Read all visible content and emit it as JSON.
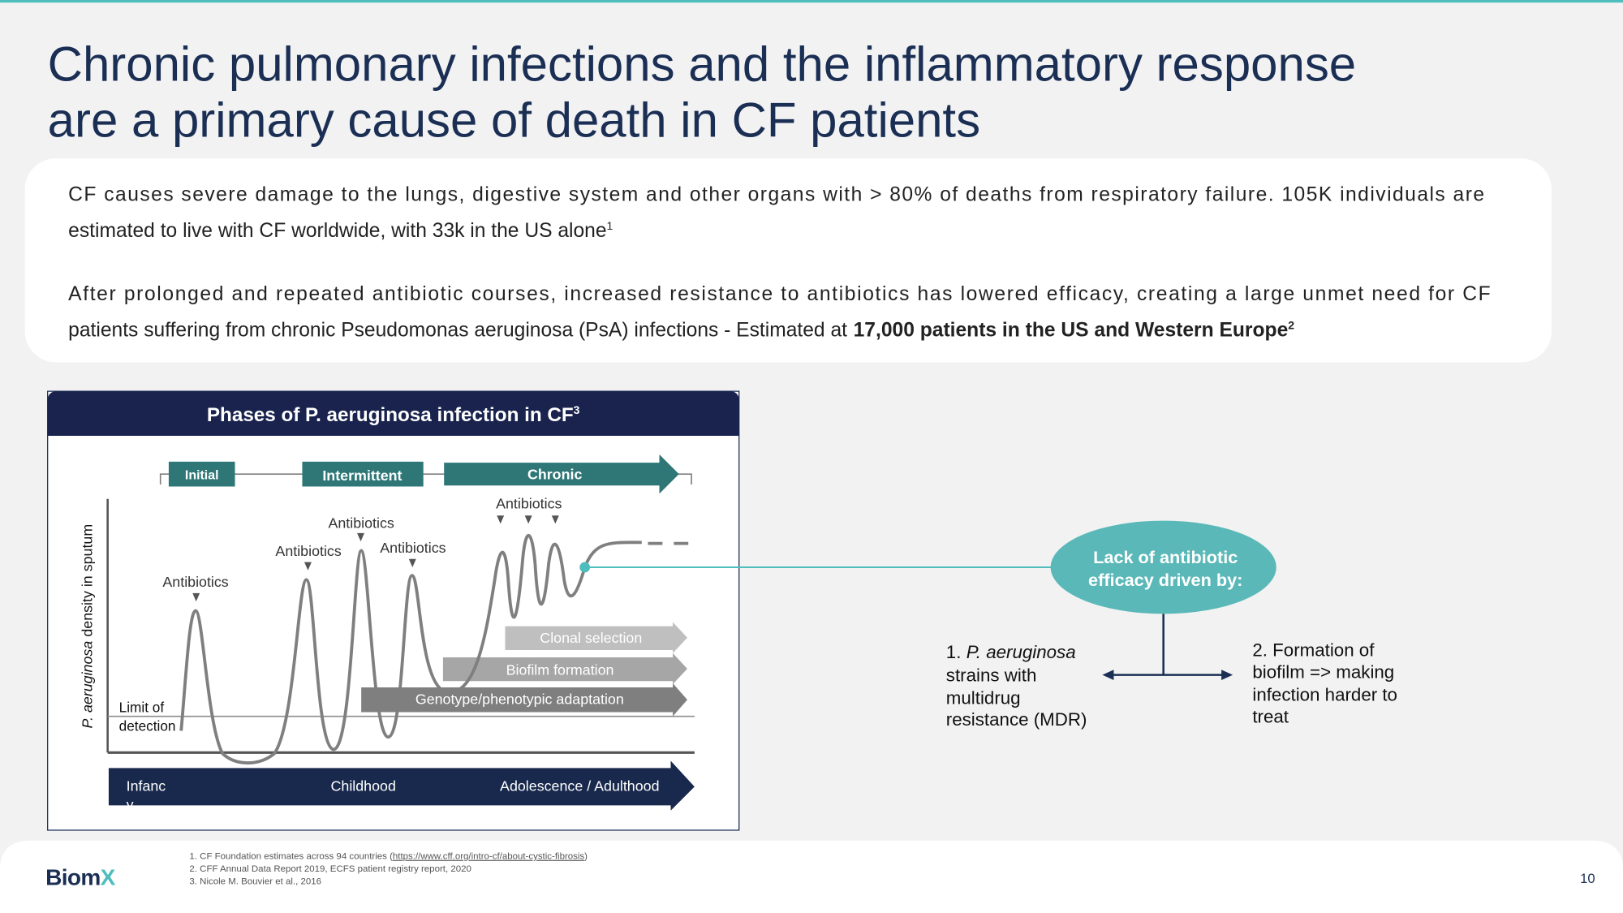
{
  "header": {
    "title_lines": [
      "Chronic pulmonary infections and the inflammatory response",
      "are a primary cause of death in CF patients"
    ]
  },
  "intro": {
    "p1": {
      "lines": [
        "CF causes severe damage to the lungs, digestive system and other organs with > 80% of deaths from respiratory failure. 105K individuals are",
        "estimated to live with CF worldwide, with 33k in the US alone"
      ],
      "ref": "1"
    },
    "p2": {
      "line1": "After prolonged and repeated antibiotic courses, increased resistance to antibiotics has lowered efficacy, creating a large unmet need for CF",
      "line2": "patients suffering from chronic Pseudomonas aeruginosa (PsA) infections - Estimated at",
      "line2_bold": "17,000 patients in the US and Western Europe",
      "ref": "2"
    }
  },
  "diagram": {
    "title": "Phases of P. aeruginosa infection in CF",
    "title_ref": "3",
    "phases": [
      "Initial",
      "Intermittent",
      "Chronic"
    ],
    "antibiotics": [
      "Antibiotics",
      "Antibiotics",
      "Antibiotics",
      "Antibiotics",
      "Antibiotics"
    ],
    "y_axis_label": [
      "P. aeruginosa",
      "density in sputum"
    ],
    "limit_label": [
      "Limit of",
      "detection"
    ],
    "mechanisms": [
      "Clonal selection",
      "Biofilm formation",
      "Genotype/phenotypic adaptation"
    ],
    "life_stages": [
      {
        "lines": [
          "Infanc",
          "y"
        ]
      },
      {
        "lines": [
          "Childhood"
        ]
      },
      {
        "lines": [
          "Adolescence / Adulthood"
        ]
      }
    ]
  },
  "drivers": {
    "bubble": [
      "Lack of antibiotic",
      "efficacy driven by:"
    ],
    "item1": {
      "number": "1.",
      "italic": "P. aeruginosa",
      "lines": [
        "strains with",
        "multidrug",
        "resistance (MDR)"
      ]
    },
    "item2": {
      "lines": [
        "2. Formation of",
        "biofilm => making",
        "infection harder to",
        "treat"
      ]
    }
  },
  "footer": {
    "logo_main": "Biom",
    "logo_accent": "X",
    "footnote1": {
      "text": "1. CF Foundation estimates across 94 countries (",
      "link": "https://www.cff.org/intro-cf/about-cystic-fibrosis",
      "close": ")"
    },
    "footnote2": "2. CFF Annual Data Report 2019, ECFS patient registry report, 2020",
    "footnote3": "3. Nicole M. Bouvier et al., 2016",
    "page_number": "10"
  }
}
